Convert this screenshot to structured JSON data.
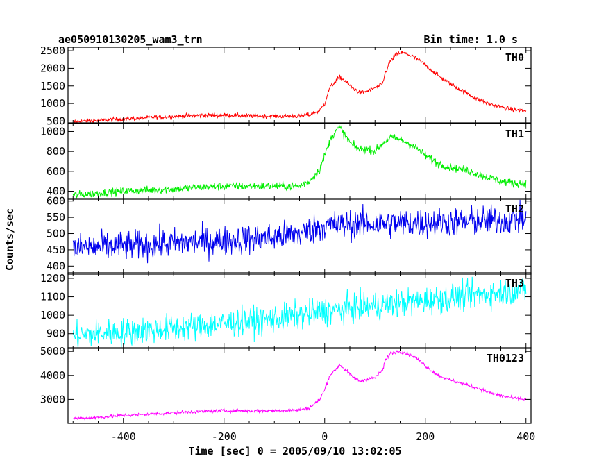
{
  "header": {
    "title": "ae050910130205_wam3_trn",
    "bin_time": "Bin time: 1.0 s"
  },
  "chart_data": {
    "type": "line",
    "title": "ae050910130205_wam3_trn",
    "subtitle": "Bin time: 1.0 s",
    "xlabel": "Time [sec] 0 = 2005/09/10 13:02:05",
    "ylabel": "Counts/sec",
    "xlim": [
      -510,
      410
    ],
    "xticks": [
      -400,
      -200,
      0,
      200,
      400
    ],
    "bin_time_s": 1.0,
    "grid": false,
    "panels": [
      {
        "name": "TH0",
        "color": "#ff0000",
        "ylim": [
          450,
          2600
        ],
        "yticks": [
          500,
          1000,
          1500,
          2000,
          2500
        ],
        "x": [
          -500,
          -450,
          -400,
          -350,
          -300,
          -250,
          -200,
          -150,
          -100,
          -50,
          -30,
          -10,
          0,
          10,
          20,
          30,
          40,
          55,
          70,
          85,
          100,
          115,
          120,
          130,
          140,
          150,
          165,
          180,
          200,
          225,
          250,
          275,
          300,
          325,
          350,
          375,
          400
        ],
        "y": [
          480,
          520,
          560,
          600,
          630,
          660,
          670,
          650,
          640,
          640,
          680,
          800,
          1000,
          1450,
          1600,
          1750,
          1650,
          1450,
          1300,
          1350,
          1450,
          1550,
          1850,
          2200,
          2350,
          2450,
          2400,
          2300,
          2100,
          1800,
          1550,
          1350,
          1150,
          1000,
          900,
          820,
          790
        ],
        "noise": 60
      },
      {
        "name": "TH1",
        "color": "#00ee00",
        "ylim": [
          320,
          1080
        ],
        "yticks": [
          400,
          600,
          800,
          1000
        ],
        "x": [
          -500,
          -450,
          -400,
          -350,
          -300,
          -250,
          -200,
          -150,
          -100,
          -50,
          -30,
          -10,
          0,
          10,
          20,
          30,
          40,
          55,
          70,
          85,
          100,
          115,
          130,
          150,
          175,
          200,
          225,
          250,
          275,
          300,
          325,
          350,
          375,
          400
        ],
        "y": [
          360,
          380,
          400,
          410,
          420,
          440,
          450,
          450,
          450,
          450,
          500,
          620,
          760,
          900,
          1000,
          1040,
          960,
          860,
          820,
          820,
          800,
          880,
          940,
          920,
          860,
          760,
          680,
          640,
          620,
          580,
          540,
          500,
          480,
          480
        ],
        "noise": 40
      },
      {
        "name": "TH2",
        "color": "#0000ee",
        "ylim": [
          375,
          608
        ],
        "yticks": [
          400,
          450,
          500,
          550,
          600
        ],
        "x": [
          -500,
          -400,
          -300,
          -200,
          -100,
          -50,
          0,
          50,
          100,
          200,
          300,
          400
        ],
        "y": [
          455,
          462,
          470,
          478,
          488,
          500,
          525,
          528,
          530,
          533,
          538,
          545
        ],
        "noise": 45
      },
      {
        "name": "TH3",
        "color": "#00ffff",
        "ylim": [
          820,
          1230
        ],
        "yticks": [
          900,
          1000,
          1100,
          1200
        ],
        "x": [
          -500,
          -400,
          -300,
          -200,
          -100,
          0,
          100,
          200,
          300,
          400
        ],
        "y": [
          890,
          910,
          930,
          955,
          980,
          1020,
          1050,
          1080,
          1110,
          1140
        ],
        "noise": 75
      },
      {
        "name": "TH0123",
        "color": "#ff00ff",
        "ylim": [
          2000,
          5150
        ],
        "yticks": [
          3000,
          4000,
          5000
        ],
        "x": [
          -500,
          -450,
          -400,
          -350,
          -300,
          -250,
          -200,
          -150,
          -100,
          -50,
          -30,
          -10,
          0,
          10,
          20,
          30,
          40,
          55,
          70,
          85,
          100,
          115,
          120,
          130,
          140,
          150,
          165,
          180,
          200,
          225,
          250,
          275,
          300,
          325,
          350,
          375,
          400
        ],
        "y": [
          2200,
          2250,
          2330,
          2380,
          2440,
          2500,
          2530,
          2520,
          2530,
          2560,
          2650,
          3000,
          3400,
          4000,
          4200,
          4450,
          4250,
          3950,
          3750,
          3850,
          3900,
          4200,
          4600,
          4900,
          4980,
          5000,
          4900,
          4750,
          4400,
          4000,
          3800,
          3650,
          3500,
          3300,
          3150,
          3050,
          3000
        ],
        "noise": 70
      }
    ]
  }
}
